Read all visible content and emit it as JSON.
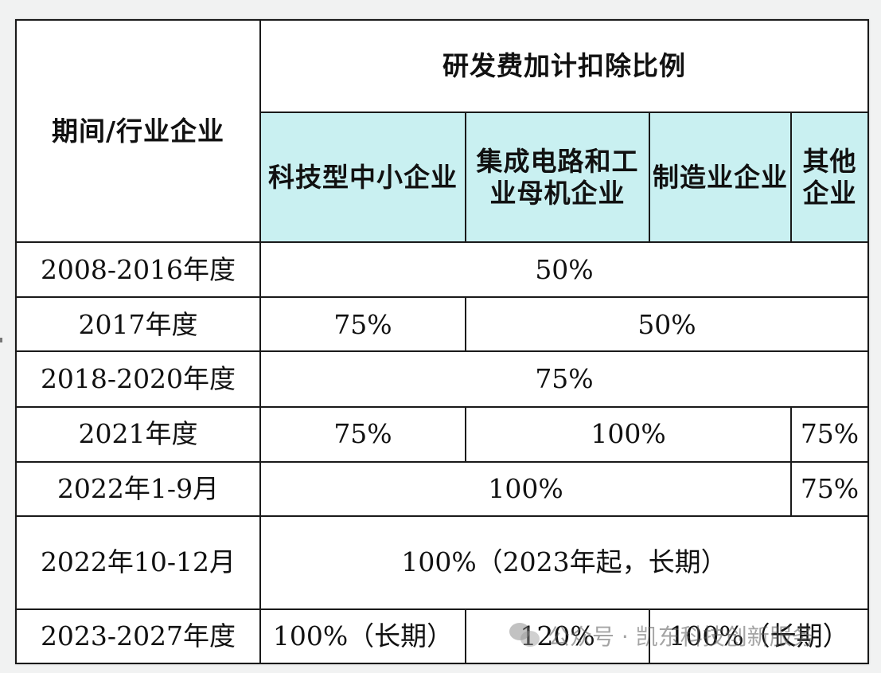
{
  "header": {
    "period_industry": "期间/行业企业",
    "ratio_title": "研发费加计扣除比例",
    "col_sme": "科技型中小企业",
    "col_ic": "集成电路和工业母机企业",
    "col_mfg": "制造业企业",
    "col_other": "其他企业"
  },
  "rows": [
    {
      "period": "2008-2016年度",
      "all": "50%"
    },
    {
      "period": "2017年度",
      "sme": "75%",
      "rest": "50%"
    },
    {
      "period": "2018-2020年度",
      "all": "75%"
    },
    {
      "period": "2021年度",
      "sme": "75%",
      "mid": "100%",
      "other": "75%"
    },
    {
      "period": "2022年1-9月",
      "main": "100%",
      "other": "75%"
    },
    {
      "period": "2022年10-12月",
      "all": "100%（2023年起，长期）"
    },
    {
      "period": "2023-2027年度",
      "sme": "100%（长期）",
      "ic": "120%",
      "rest": "100%（长期）"
    }
  ],
  "watermark": {
    "text": "公众号 · 凯东科技创新服务"
  },
  "colors": {
    "header_highlight": "#c9f0f1",
    "border": "#1a1a1a",
    "background": "#f1f2f2"
  }
}
